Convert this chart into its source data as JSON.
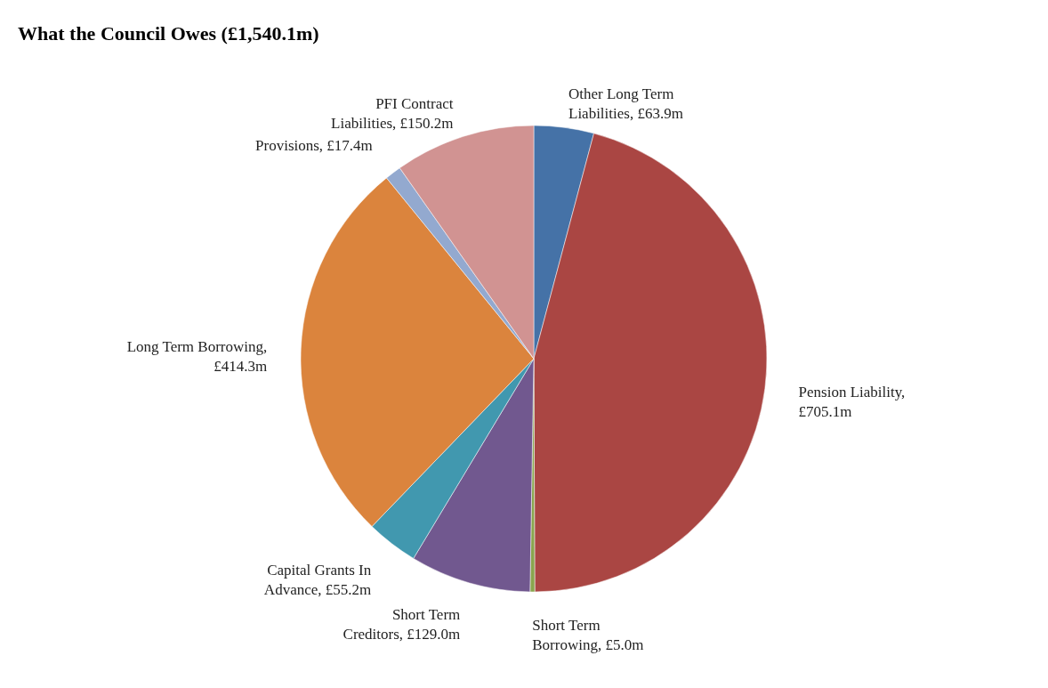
{
  "chart_data": {
    "type": "pie",
    "title": "What the Council Owes (£1,540.1m)",
    "categories": [
      "Other Long Term Liabilities, £63.9m",
      "Pension Liability, £705.1m",
      "Short Term Borrowing, £5.0m",
      "Short Term Creditors, £129.0m",
      "Capital Grants In Advance, £55.2m",
      "Long Term Borrowing, £414.3m",
      "Provisions, £17.4m",
      "PFI Contract Liabilities, £150.2m"
    ],
    "values": [
      63.9,
      705.1,
      5.0,
      129.0,
      55.2,
      414.3,
      17.4,
      150.2
    ],
    "colors": [
      "#4572a7",
      "#aa4643",
      "#89a54e",
      "#71588f",
      "#4198af",
      "#db843d",
      "#93a9cf",
      "#d19392"
    ]
  }
}
